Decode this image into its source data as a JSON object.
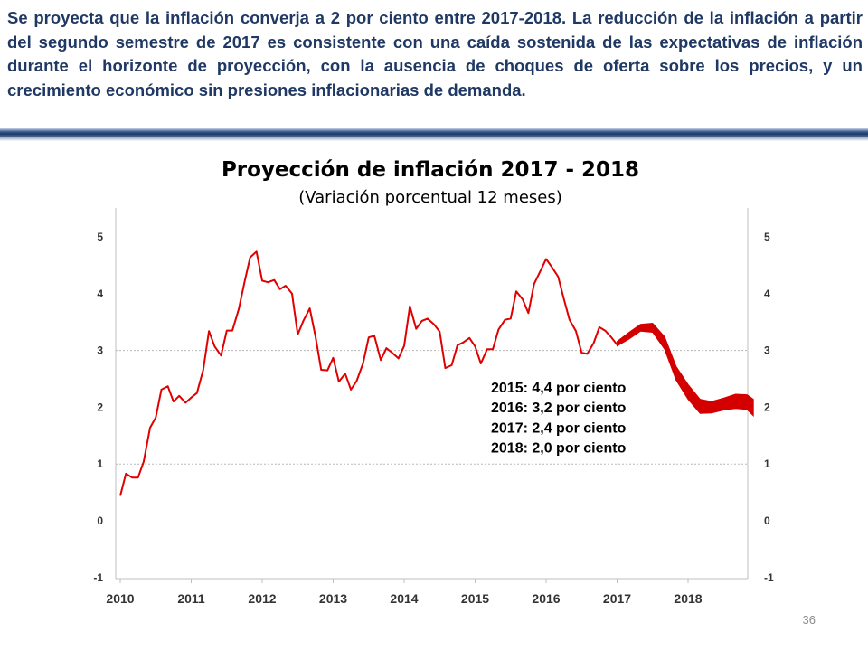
{
  "slide": {
    "headline": "Se proyecta que la inflación converja a 2 por ciento entre 2017-2018. La reducción de la inflación a partir del segundo semestre de 2017 es consistente con una caída sostenida de las expectativas de inflación durante el horizonte de proyección, con la ausencia de choques de oferta sobre los precios, y un crecimiento económico sin presiones inflacionarias de demanda.",
    "page_number": "36"
  },
  "colors": {
    "headline": "#1f3864",
    "series": "#e00000",
    "band": "#d40000"
  },
  "chart_data": {
    "type": "line",
    "title": "Proyección de inflación 2017 - 2018",
    "subtitle": "(Variación porcentual 12 meses)",
    "xlabel": "",
    "ylabel": "",
    "x_ticks": [
      "2010",
      "2011",
      "2012",
      "2013",
      "2014",
      "2015",
      "2016",
      "2017",
      "2018"
    ],
    "y_ticks": [
      "5",
      "4",
      "3",
      "2",
      "1",
      "0",
      "-1"
    ],
    "ylim": [
      -1,
      5
    ],
    "grid": "dotted horizontal lines at 1 and 3",
    "secondary_axis": "right, same scale",
    "annotations": [
      "2015: 4,4 por ciento",
      "2016: 3,2 por ciento",
      "2017: 2,4 por ciento",
      "2018: 2,0 por ciento"
    ],
    "series": [
      {
        "kind": "observed",
        "x": [
          2010.0,
          2010.08,
          2010.17,
          2010.25,
          2010.33,
          2010.42,
          2010.5,
          2010.58,
          2010.67,
          2010.75,
          2010.83,
          2010.92,
          2011.0,
          2011.08,
          2011.17,
          2011.25,
          2011.33,
          2011.42,
          2011.5,
          2011.58,
          2011.67,
          2011.75,
          2011.83,
          2011.92,
          2012.0,
          2012.08,
          2012.17,
          2012.25,
          2012.33,
          2012.42,
          2012.5,
          2012.58,
          2012.67,
          2012.75,
          2012.83,
          2012.92,
          2013.0,
          2013.08,
          2013.17,
          2013.25,
          2013.33,
          2013.42,
          2013.5,
          2013.58,
          2013.67,
          2013.75,
          2013.83,
          2013.92,
          2014.0,
          2014.08,
          2014.17,
          2014.25,
          2014.33,
          2014.42,
          2014.5,
          2014.58,
          2014.67,
          2014.75,
          2014.83,
          2014.92,
          2015.0,
          2015.08,
          2015.17,
          2015.25,
          2015.33,
          2015.42,
          2015.5,
          2015.58,
          2015.67,
          2015.75,
          2015.83,
          2015.92,
          2016.0,
          2016.08,
          2016.17,
          2016.25,
          2016.33,
          2016.42,
          2016.5,
          2016.58,
          2016.67,
          2016.75,
          2016.83,
          2016.92,
          2017.0
        ],
        "y": [
          0.44,
          0.83,
          0.76,
          0.76,
          1.04,
          1.64,
          1.82,
          2.31,
          2.37,
          2.1,
          2.2,
          2.08,
          2.17,
          2.25,
          2.66,
          3.34,
          3.07,
          2.91,
          3.35,
          3.35,
          3.73,
          4.2,
          4.64,
          4.74,
          4.23,
          4.2,
          4.24,
          4.08,
          4.14,
          4.0,
          3.28,
          3.52,
          3.74,
          3.25,
          2.66,
          2.65,
          2.87,
          2.45,
          2.59,
          2.31,
          2.46,
          2.77,
          3.23,
          3.26,
          2.83,
          3.04,
          2.96,
          2.86,
          3.08,
          3.78,
          3.38,
          3.52,
          3.56,
          3.46,
          3.33,
          2.69,
          2.74,
          3.09,
          3.14,
          3.22,
          3.07,
          2.77,
          3.02,
          3.02,
          3.37,
          3.54,
          3.56,
          4.04,
          3.9,
          3.66,
          4.17,
          4.4,
          4.61,
          4.47,
          4.3,
          3.91,
          3.54,
          3.34,
          2.96,
          2.94,
          3.13,
          3.41,
          3.35,
          3.23,
          3.1
        ]
      },
      {
        "kind": "projection",
        "x": [
          2017.0,
          2017.17,
          2017.33,
          2017.5,
          2017.67,
          2017.83,
          2018.0,
          2018.17,
          2018.33,
          2018.5,
          2018.67,
          2018.83,
          2018.92
        ],
        "upper": [
          3.16,
          3.32,
          3.46,
          3.48,
          3.24,
          2.72,
          2.4,
          2.14,
          2.1,
          2.16,
          2.23,
          2.22,
          2.14
        ],
        "lower": [
          3.08,
          3.2,
          3.34,
          3.32,
          3.02,
          2.48,
          2.14,
          1.89,
          1.9,
          1.95,
          1.98,
          1.96,
          1.85
        ]
      }
    ]
  }
}
